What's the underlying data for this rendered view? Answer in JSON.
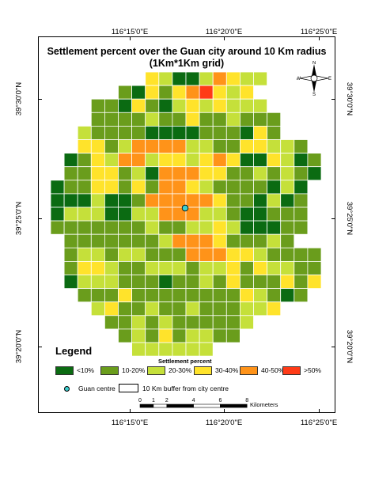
{
  "map": {
    "title_line1": "Settlement percent over the Guan city around 10 Km radius",
    "title_line2": "(1Km*1Km grid)"
  },
  "coords": {
    "top": [
      "116°15'0\"E",
      "116°20'0\"E",
      "116°25'0\"E"
    ],
    "bottom": [
      "116°15'0\"E",
      "116°20'0\"E",
      "116°25'0\"E"
    ],
    "left": [
      "39°30'0\"N",
      "39°25'0\"N",
      "39°20'0\"N"
    ],
    "right": [
      "39°30'0\"N",
      "39°25'0\"N",
      "39°20'0\"N"
    ]
  },
  "north_arrow": {
    "n": "N",
    "s": "S",
    "e": "E",
    "w": "W"
  },
  "legend": {
    "title": "Legend",
    "subtitle": "Settlement percent",
    "classes": [
      {
        "label": "<10%",
        "color": "#0b6b12"
      },
      {
        "label": "10-20%",
        "color": "#6a9d1c"
      },
      {
        "label": "20-30%",
        "color": "#c5e03a"
      },
      {
        "label": "30-40%",
        "color": "#ffe32b"
      },
      {
        "label": "40-50%",
        "color": "#ff9319"
      },
      {
        "label": ">50%",
        "color": "#ff3b17"
      }
    ],
    "centre_label": "Guan centre",
    "centre_color": "#3ccfcf",
    "buffer_label": "10 Km buffer from city centre"
  },
  "scalebar": {
    "ticks": [
      "0",
      "1",
      "2",
      "4",
      "6",
      "8"
    ],
    "tick_km": [
      0,
      1,
      2,
      4,
      6,
      8
    ],
    "unit": "Kilometers"
  },
  "grid": {
    "rows": [
      "....  .431135433....",
      ".....2142456434.....",
      "...2214213434333....",
      "...22223224223222...",
      "..322221111222142...",
      "..44235555332244332.",
      ".1243553443454114312",
      ".2244231555442232321",
      "1224424255432222131.",
      "1113112555554221312.",
      "1333113355533211222.",
      "2222222322334311122.",
      ".22222223555422232..",
      ".2332332225554432222",
      ".2443223332334243322",
      ".1333222122324222424",
      "..22242222222243212.",
      "...34223223222334...",
      "....22323222223.....",
      ".....232423322......",
      "......333333........"
    ]
  }
}
